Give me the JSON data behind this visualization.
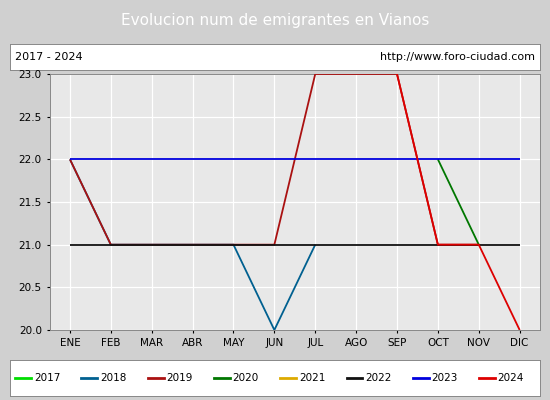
{
  "title": "Evolucion num de emigrantes en Vianos",
  "subtitle_left": "2017 - 2024",
  "subtitle_right": "http://www.foro-ciudad.com",
  "months": [
    "ENE",
    "FEB",
    "MAR",
    "ABR",
    "MAY",
    "JUN",
    "JUL",
    "AGO",
    "SEP",
    "OCT",
    "NOV",
    "DIC"
  ],
  "ylim": [
    20.0,
    23.0
  ],
  "yticks": [
    20.0,
    20.5,
    21.0,
    21.5,
    22.0,
    22.5,
    23.0
  ],
  "background_color": "#d0d0d0",
  "plot_bg_color": "#e8e8e8",
  "title_bg_color": "#5577cc",
  "subtitle_bg": "#ffffff",
  "legend_bg": "#ffffff",
  "series": {
    "2017": {
      "color": "#00dd00",
      "data": []
    },
    "2018": {
      "color": "#006090",
      "data": [
        [
          1,
          22
        ],
        [
          2,
          21
        ],
        [
          3,
          21
        ],
        [
          4,
          21
        ],
        [
          5,
          21
        ],
        [
          6,
          20
        ],
        [
          7,
          21
        ]
      ]
    },
    "2019": {
      "color": "#aa1111",
      "data": [
        [
          1,
          22
        ],
        [
          2,
          21
        ],
        [
          3,
          21
        ],
        [
          4,
          21
        ],
        [
          5,
          21
        ],
        [
          6,
          21
        ],
        [
          7,
          23
        ],
        [
          8,
          23
        ],
        [
          9,
          23
        ],
        [
          10,
          21
        ],
        [
          11,
          21
        ]
      ]
    },
    "2020": {
      "color": "#007700",
      "data": [
        [
          10,
          22
        ],
        [
          11,
          21
        ]
      ]
    },
    "2021": {
      "color": "#ddaa00",
      "data": []
    },
    "2022": {
      "color": "#111111",
      "data": [
        [
          1,
          21
        ],
        [
          2,
          21
        ],
        [
          3,
          21
        ],
        [
          4,
          21
        ],
        [
          5,
          21
        ],
        [
          6,
          21
        ],
        [
          7,
          21
        ],
        [
          8,
          21
        ],
        [
          9,
          21
        ],
        [
          10,
          21
        ],
        [
          11,
          21
        ],
        [
          12,
          21
        ]
      ]
    },
    "2023": {
      "color": "#0000dd",
      "data": [
        [
          1,
          22
        ],
        [
          2,
          22
        ],
        [
          3,
          22
        ],
        [
          4,
          22
        ],
        [
          5,
          22
        ],
        [
          6,
          22
        ],
        [
          7,
          22
        ],
        [
          8,
          22
        ],
        [
          9,
          22
        ],
        [
          10,
          22
        ],
        [
          11,
          22
        ],
        [
          12,
          22
        ]
      ]
    },
    "2024": {
      "color": "#dd0000",
      "data": [
        [
          9,
          23
        ],
        [
          10,
          21
        ],
        [
          11,
          21
        ],
        [
          12,
          20
        ]
      ]
    }
  },
  "legend_order": [
    "2017",
    "2018",
    "2019",
    "2020",
    "2021",
    "2022",
    "2023",
    "2024"
  ]
}
